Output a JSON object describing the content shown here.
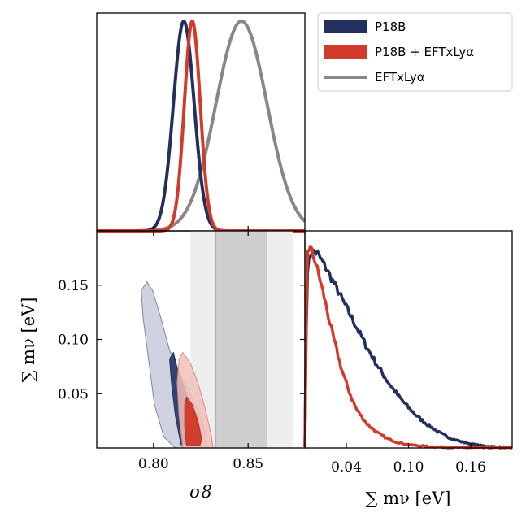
{
  "colors": {
    "p18b": "#23305e",
    "combined": "#d23a2a",
    "eft": "#878787",
    "band_inner": "#cfcfcf",
    "band_outer": "#eeeeee",
    "contour_outer_blue": "#c7cadb",
    "contour_inner_blue": "#2b3a6e",
    "contour_outer_red": "#f1c1b8",
    "contour_inner_red": "#d13826"
  },
  "legend": [
    {
      "label": "P18B",
      "style": "patch",
      "color": "#23305e"
    },
    {
      "label": "P18B + EFTxLyα",
      "style": "patch",
      "color": "#d23a2a"
    },
    {
      "label": "EFTxLyα",
      "style": "line",
      "color": "#878787"
    }
  ],
  "chart_data": [
    {
      "panel": "sigma8-marginal",
      "type": "line",
      "xlim": [
        0.77,
        0.88
      ],
      "series": [
        {
          "name": "P18B",
          "mean": 0.816,
          "sigma": 0.0055
        },
        {
          "name": "P18B + EFTxLyα",
          "mean": 0.8205,
          "sigma": 0.0042
        },
        {
          "name": "EFTxLyα",
          "mean": 0.8465,
          "sigma": 0.0135
        }
      ]
    },
    {
      "panel": "mnu-marginal",
      "type": "line",
      "xlabel": "∑ mν [eV]",
      "xlim": [
        0.0,
        0.2
      ],
      "x_ticks": [
        0.04,
        0.1,
        0.16
      ],
      "x_tick_labels": [
        "0.04",
        "0.10",
        "0.16"
      ],
      "series": [
        {
          "name": "P18B",
          "x": [
            0.0,
            0.002,
            0.006,
            0.012,
            0.02,
            0.03,
            0.04,
            0.05,
            0.06,
            0.07,
            0.08,
            0.09,
            0.1,
            0.11,
            0.12,
            0.13,
            0.14,
            0.15,
            0.16,
            0.17,
            0.18,
            0.19,
            0.2
          ],
          "y": [
            0.0,
            0.88,
            0.98,
            0.97,
            0.9,
            0.8,
            0.7,
            0.6,
            0.5,
            0.41,
            0.33,
            0.26,
            0.2,
            0.15,
            0.11,
            0.075,
            0.05,
            0.032,
            0.02,
            0.012,
            0.007,
            0.004,
            0.002
          ]
        },
        {
          "name": "P18B + EFTxLyα",
          "x": [
            0.0,
            0.002,
            0.005,
            0.01,
            0.015,
            0.02,
            0.025,
            0.03,
            0.035,
            0.04,
            0.045,
            0.05,
            0.06,
            0.07,
            0.08,
            0.09,
            0.1,
            0.12,
            0.14,
            0.16,
            0.18,
            0.2
          ],
          "y": [
            0.0,
            0.98,
            1.0,
            0.93,
            0.83,
            0.72,
            0.6,
            0.5,
            0.4,
            0.32,
            0.25,
            0.19,
            0.12,
            0.075,
            0.045,
            0.027,
            0.016,
            0.007,
            0.003,
            0.0015,
            0.0008,
            0.0004
          ]
        }
      ]
    },
    {
      "panel": "sigma8-mnu-2d",
      "type": "scatter",
      "xlabel": "σ8",
      "ylabel": "∑ mν [eV]",
      "xlim": [
        0.77,
        0.88
      ],
      "ylim": [
        0.0,
        0.2
      ],
      "x_ticks": [
        0.8,
        0.85
      ],
      "x_tick_labels": [
        "0.80",
        "0.85"
      ],
      "y_ticks": [
        0.05,
        0.1,
        0.15
      ],
      "y_tick_labels": [
        "0.05",
        "0.10",
        "0.15"
      ],
      "eft_band_1sigma": [
        0.833,
        0.86
      ],
      "eft_band_2sigma": [
        0.8195,
        0.8735
      ],
      "contours": [
        {
          "name": "P18B",
          "level": "95%",
          "points": [
            [
              0.7965,
              0.153
            ],
            [
              0.7995,
              0.145
            ],
            [
              0.8035,
              0.122
            ],
            [
              0.8085,
              0.09
            ],
            [
              0.8135,
              0.07
            ],
            [
              0.8195,
              0.05
            ],
            [
              0.8245,
              0.03
            ],
            [
              0.8275,
              0.012
            ],
            [
              0.8285,
              0.0
            ],
            [
              0.8115,
              0.0
            ],
            [
              0.8055,
              0.01
            ],
            [
              0.8005,
              0.04
            ],
            [
              0.7975,
              0.08
            ],
            [
              0.7945,
              0.12
            ],
            [
              0.7935,
              0.145
            ]
          ]
        },
        {
          "name": "P18B",
          "level": "68%",
          "points": [
            [
              0.8105,
              0.088
            ],
            [
              0.8125,
              0.074
            ],
            [
              0.8175,
              0.05
            ],
            [
              0.8215,
              0.025
            ],
            [
              0.8235,
              0.004
            ],
            [
              0.8145,
              0.003
            ],
            [
              0.8115,
              0.03
            ],
            [
              0.8095,
              0.06
            ],
            [
              0.8085,
              0.082
            ]
          ]
        },
        {
          "name": "P18B + EFTxLyα",
          "level": "95%",
          "points": [
            [
              0.8155,
              0.088
            ],
            [
              0.8195,
              0.078
            ],
            [
              0.8235,
              0.06
            ],
            [
              0.8275,
              0.035
            ],
            [
              0.8305,
              0.012
            ],
            [
              0.8315,
              0.0
            ],
            [
              0.8155,
              0.0
            ],
            [
              0.8135,
              0.03
            ],
            [
              0.8125,
              0.06
            ],
            [
              0.8135,
              0.082
            ]
          ]
        },
        {
          "name": "P18B + EFTxLyα",
          "level": "68%",
          "points": [
            [
              0.8175,
              0.047
            ],
            [
              0.8205,
              0.04
            ],
            [
              0.8235,
              0.025
            ],
            [
              0.8255,
              0.008
            ],
            [
              0.8245,
              0.002
            ],
            [
              0.8175,
              0.002
            ],
            [
              0.8165,
              0.02
            ],
            [
              0.8165,
              0.04
            ]
          ]
        }
      ]
    }
  ]
}
